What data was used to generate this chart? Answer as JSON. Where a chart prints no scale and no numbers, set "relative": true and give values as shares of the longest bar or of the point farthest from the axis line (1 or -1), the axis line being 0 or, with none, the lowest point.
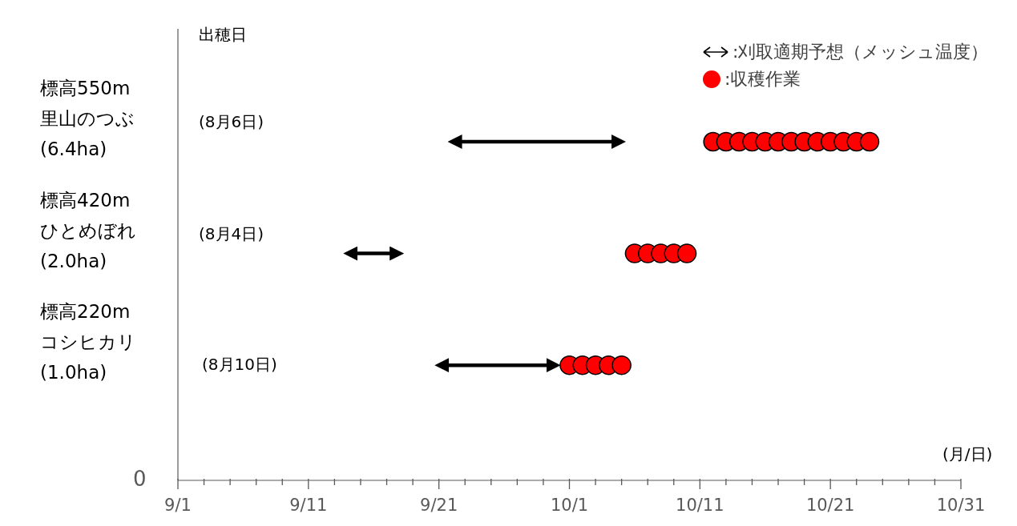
{
  "chart_data": {
    "type": "scatter",
    "relative": true,
    "xlabel": "(月/日)",
    "legend": "top right",
    "marker": "circle",
    "xlim": [
      "--09-01",
      "--10-31"
    ],
    "xticks": [
      {
        "value": "--09-01",
        "label": "9/1"
      },
      {
        "value": "--09-03",
        "label": null
      },
      {
        "value": "--09-05",
        "label": null
      },
      {
        "value": "--09-07",
        "label": null
      },
      {
        "value": "--09-09",
        "label": null
      },
      {
        "value": "--09-11",
        "label": "9/11"
      },
      {
        "value": "--09-13",
        "label": null
      },
      {
        "value": "--09-15",
        "label": null
      },
      {
        "value": "--09-17",
        "label": null
      },
      {
        "value": "--09-19",
        "label": null
      },
      {
        "value": "--09-21",
        "label": "9/21"
      },
      {
        "value": "--09-23",
        "label": null
      },
      {
        "value": "--09-25",
        "label": null
      },
      {
        "value": "--09-27",
        "label": null
      },
      {
        "value": "--09-29",
        "label": null
      },
      {
        "value": "--10-01",
        "label": "10/1"
      },
      {
        "value": "--10-03",
        "label": null
      },
      {
        "value": "--10-05",
        "label": null
      },
      {
        "value": "--10-07",
        "label": null
      },
      {
        "value": "--10-09",
        "label": null
      },
      {
        "value": "--10-11",
        "label": "10/11"
      },
      {
        "value": "--10-13",
        "label": null
      },
      {
        "value": "--10-15",
        "label": null
      },
      {
        "value": "--10-17",
        "label": null
      },
      {
        "value": "--10-19",
        "label": null
      },
      {
        "value": "--10-21",
        "label": "10/21"
      },
      {
        "value": "--10-23",
        "label": null
      },
      {
        "value": "--10-25",
        "label": null
      },
      {
        "value": "--10-27",
        "label": null
      },
      {
        "value": "--10-29",
        "label": null
      },
      {
        "value": "--10-31",
        "label": "10/31"
      }
    ],
    "series": [
      {
        "name": ":刈取適期予想（メッシュ温度）",
        "type": "line",
        "marker": "none",
        "color": "#000000",
        "x": [
          "--09-22",
          "--10-05"
        ],
        "values": [
          1,
          1
        ]
      },
      {
        "type": "line",
        "marker": "none",
        "color": "#000000",
        "x": [
          "--09-14",
          "--09-18"
        ],
        "values": [
          0.67,
          0.67
        ]
      },
      {
        "type": "line",
        "marker": "none",
        "color": "#000000",
        "x": [
          "--09-21",
          "--09-30"
        ],
        "values": [
          0.34,
          0.34
        ]
      },
      {
        "name": ":収穫作業",
        "color": "#ff0000",
        "x": [
          "--10-12",
          "--10-13",
          "--10-14",
          "--10-15",
          "--10-16",
          "--10-17",
          "--10-18",
          "--10-19",
          "--10-20",
          "--10-21",
          "--10-22",
          "--10-23",
          "--10-24",
          "--10-06",
          "--10-07",
          "--10-08",
          "--10-09",
          "--10-10",
          "--10-01",
          "--10-02",
          "--10-03",
          "--10-04",
          "--10-05"
        ],
        "values": [
          1,
          1,
          1,
          1,
          1,
          1,
          1,
          1,
          1,
          1,
          1,
          1,
          1,
          0.67,
          0.67,
          0.67,
          0.67,
          0.67,
          0.34,
          0.34,
          0.34,
          0.34,
          0.34
        ]
      }
    ],
    "annotations": [
      "出穂日",
      "標高550m\n里山のつぶ\n(6.4ha)",
      "標高420m\nひとめぼれ\n(2.0ha)",
      "標高220m\nコシヒカリ\n(1.0ha)",
      "(8月6日)",
      "(8月4日)",
      "(8月10日)",
      "0"
    ]
  }
}
